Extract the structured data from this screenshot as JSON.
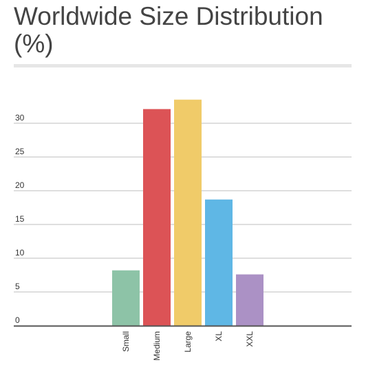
{
  "title": "Worldwide Size Distribution (%)",
  "chart_data": {
    "type": "bar",
    "title": "Worldwide Size Distribution (%)",
    "categories": [
      "Small",
      "Medium",
      "Large",
      "XL",
      "XXL"
    ],
    "values": [
      8.2,
      32.1,
      33.5,
      18.7,
      7.6
    ],
    "colors": [
      "#8dc3a7",
      "#dc5356",
      "#f0cb69",
      "#5fb7e5",
      "#ab91c5"
    ],
    "yticks": [
      0,
      5,
      10,
      15,
      20,
      25,
      30
    ],
    "ylim": [
      0,
      35
    ],
    "xlabel": "",
    "ylabel": "",
    "grid": true,
    "legend": "none"
  }
}
